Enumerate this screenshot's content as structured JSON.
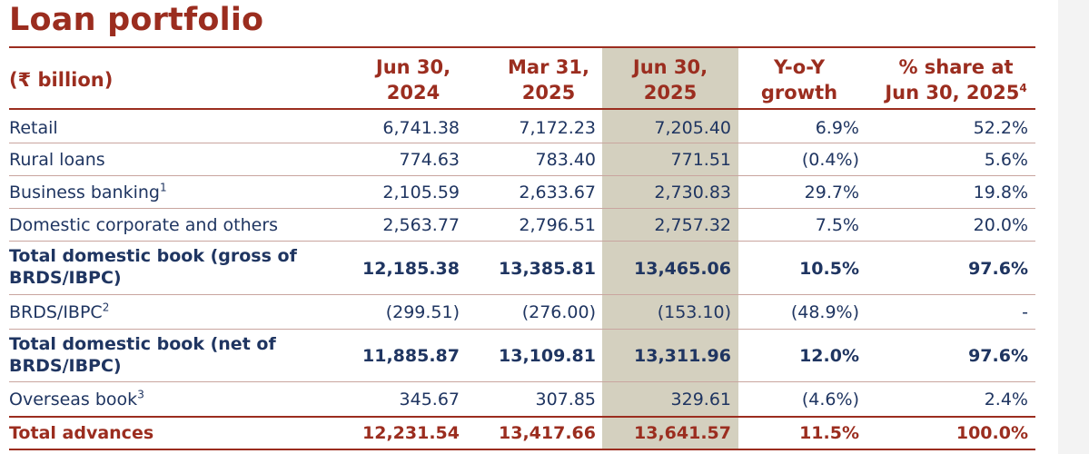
{
  "title": "Loan portfolio",
  "unit_label": "(₹ billion)",
  "columns": [
    {
      "line1": "Jun 30,",
      "line2": "2024"
    },
    {
      "line1": "Mar 31,",
      "line2": "2025"
    },
    {
      "line1": "Jun 30,",
      "line2": "2025"
    },
    {
      "line1": "Y-o-Y",
      "line2": "growth"
    },
    {
      "line1": "% share at",
      "line2": "Jun 30, 2025",
      "sup": "4"
    }
  ],
  "rows": [
    {
      "label": "Retail",
      "sup": "",
      "values": [
        "6,741.38",
        "7,172.23",
        "7,205.40",
        "6.9%",
        "52.2%"
      ]
    },
    {
      "label": "Rural loans",
      "sup": "",
      "values": [
        "774.63",
        "783.40",
        "771.51",
        "(0.4%)",
        "5.6%"
      ]
    },
    {
      "label": "Business banking",
      "sup": "1",
      "values": [
        "2,105.59",
        "2,633.67",
        "2,730.83",
        "29.7%",
        "19.8%"
      ]
    },
    {
      "label": "Domestic corporate and others",
      "sup": "",
      "values": [
        "2,563.77",
        "2,796.51",
        "2,757.32",
        "7.5%",
        "20.0%"
      ]
    },
    {
      "label_line1": "Total domestic book (gross of",
      "label_line2": "BRDS/IBPC)",
      "values": [
        "12,185.38",
        "13,385.81",
        "13,465.06",
        "10.5%",
        "97.6%"
      ]
    },
    {
      "label": "BRDS/IBPC",
      "sup": "2",
      "values": [
        "(299.51)",
        "(276.00)",
        "(153.10)",
        "(48.9%)",
        "-"
      ]
    },
    {
      "label_line1": "Total domestic book (net of",
      "label_line2": "BRDS/IBPC)",
      "values": [
        "11,885.87",
        "13,109.81",
        "13,311.96",
        "12.0%",
        "97.6%"
      ]
    },
    {
      "label": "Overseas book",
      "sup": "3",
      "values": [
        "345.67",
        "307.85",
        "329.61",
        "(4.6%)",
        "2.4%"
      ]
    },
    {
      "label": "Total advances",
      "sup": "",
      "values": [
        "12,231.54",
        "13,417.66",
        "13,641.57",
        "11.5%",
        "100.0%"
      ]
    }
  ]
}
